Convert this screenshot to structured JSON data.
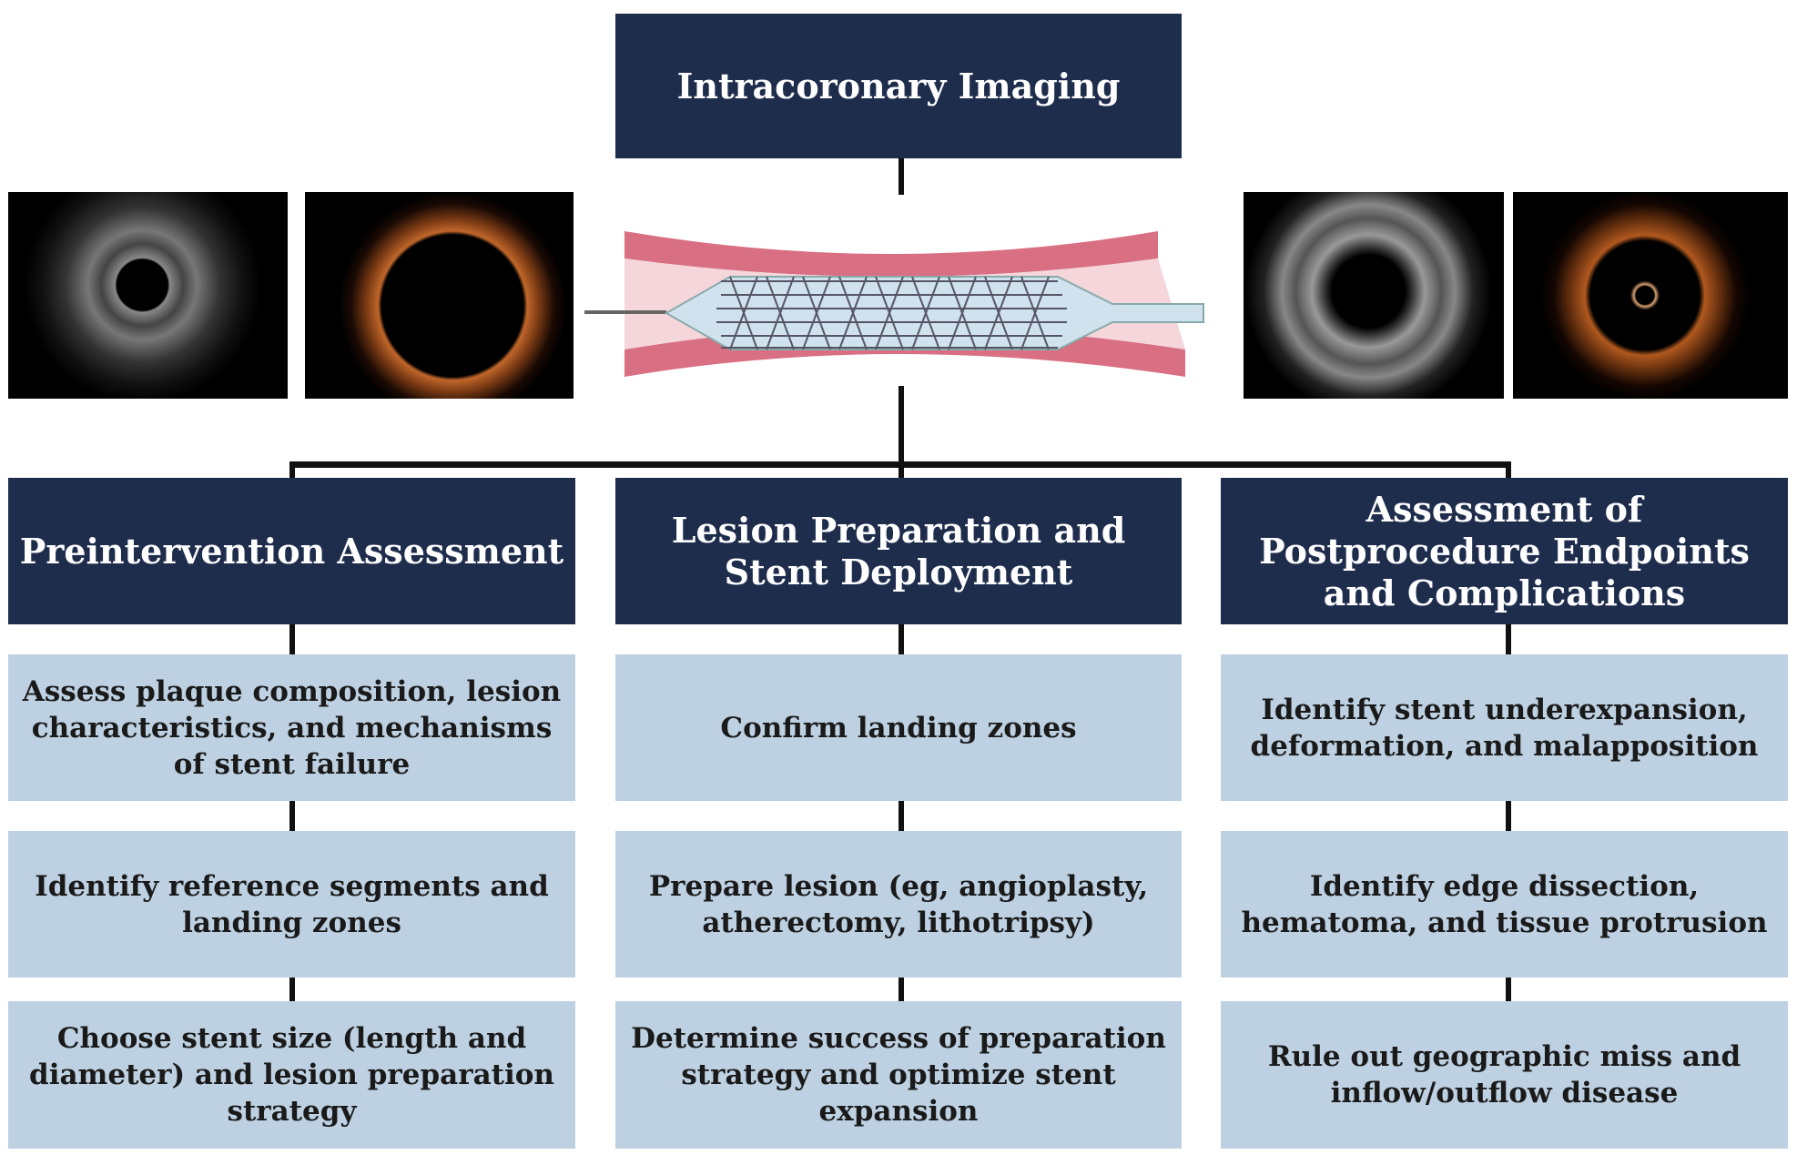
{
  "title": "Intracoronary Imaging",
  "images": [
    {
      "name": "ivus-preintervention-image",
      "kind": "IVUS grayscale"
    },
    {
      "name": "oct-preintervention-image",
      "kind": "OCT orange"
    },
    {
      "name": "ivus-poststent-image",
      "kind": "IVUS grayscale"
    },
    {
      "name": "oct-poststent-image",
      "kind": "OCT orange"
    }
  ],
  "colors": {
    "header": "#1f2d4d",
    "step": "#bed1e2",
    "connector": "#111111"
  },
  "columns": [
    {
      "header": "Preintervention Assessment",
      "steps": [
        "Assess plaque composition, lesion characteristics, and mechanisms of stent failure",
        "Identify reference segments and landing zones",
        "Choose stent size (length and diameter) and lesion preparation strategy"
      ]
    },
    {
      "header": "Lesion Preparation and Stent Deployment",
      "steps": [
        "Confirm landing zones",
        "Prepare lesion (eg, angioplasty, atherectomy, lithotripsy)",
        "Determine success of preparation strategy and optimize stent expansion"
      ]
    },
    {
      "header": "Assessment of Postprocedure Endpoints and Complications",
      "steps": [
        "Identify stent underexpansion, deformation, and malapposition",
        "Identify edge dissection, hematoma, and tissue protrusion",
        "Rule out geographic miss and inflow/outflow disease"
      ]
    }
  ]
}
